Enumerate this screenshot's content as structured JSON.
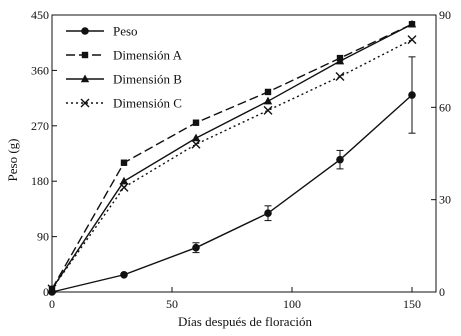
{
  "chart_data": {
    "type": "line",
    "xlabel": "Días después de floración",
    "ylabel": "Peso (g)",
    "xlim": [
      0,
      160
    ],
    "ylim": [
      0,
      450
    ],
    "y2lim": [
      0,
      90
    ],
    "x_ticks": [
      0,
      50,
      100,
      150
    ],
    "y_ticks": [
      0,
      90,
      180,
      270,
      360,
      450
    ],
    "y2_ticks": [
      0,
      30,
      60,
      90
    ],
    "y2_tick_labels": [
      "0",
      "30",
      "60",
      "90"
    ],
    "legend_position": "top-left",
    "grid": false,
    "series": [
      {
        "name": "Peso",
        "axis": "left",
        "marker": "circle",
        "line_style": "solid",
        "x": [
          0,
          30,
          60,
          90,
          120,
          150
        ],
        "values": [
          0,
          28,
          72,
          128,
          215,
          320
        ],
        "errors": [
          0,
          0,
          8,
          12,
          15,
          62
        ]
      },
      {
        "name": "Dimensión A",
        "axis": "right",
        "marker": "square",
        "line_style": "dashed",
        "x": [
          0,
          30,
          60,
          90,
          120,
          150
        ],
        "values": [
          1,
          42,
          55,
          65,
          76,
          87
        ]
      },
      {
        "name": "Dimensión B",
        "axis": "right",
        "marker": "triangle",
        "line_style": "solid",
        "x": [
          0,
          30,
          60,
          90,
          120,
          150
        ],
        "values": [
          1,
          36,
          50,
          62,
          75,
          87
        ]
      },
      {
        "name": "Dimensión C",
        "axis": "right",
        "marker": "x",
        "line_style": "dotted",
        "x": [
          0,
          30,
          60,
          90,
          120,
          150
        ],
        "values": [
          1,
          34,
          48,
          59,
          70,
          82
        ]
      }
    ]
  }
}
